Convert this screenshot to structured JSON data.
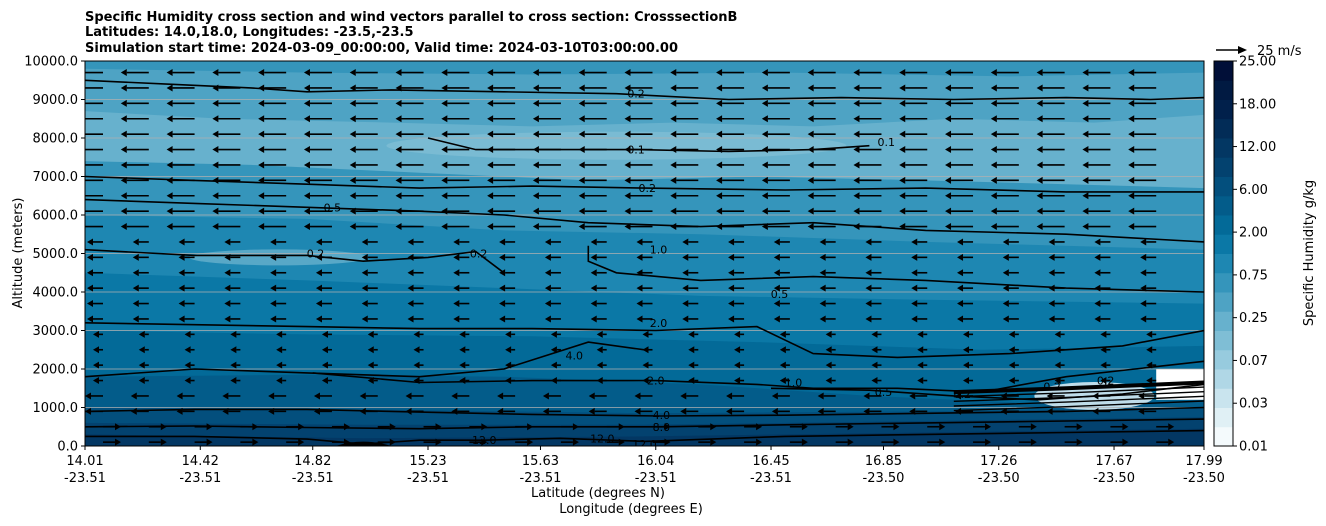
{
  "chart_data": {
    "type": "heatmap",
    "title_lines": [
      "Specific Humidity cross section and wind vectors parallel to cross section: CrosssectionB",
      "Latitudes: 14.0,18.0, Longitudes: -23.5,-23.5",
      "Simulation start time: 2024-03-09_00:00:00, Valid time: 2024-03-10T03:00:00.00"
    ],
    "ylabel": "Altitude (meters)",
    "xlabel_lat": "Latitude (degrees N)",
    "xlabel_lon": "Longitude (degrees E)",
    "ylim": [
      0,
      10000
    ],
    "y_ticks": [
      "0.0",
      "1000.0",
      "2000.0",
      "3000.0",
      "4000.0",
      "5000.0",
      "6000.0",
      "7000.0",
      "8000.0",
      "9000.0",
      "10000.0"
    ],
    "y_tick_values": [
      0,
      1000,
      2000,
      3000,
      4000,
      5000,
      6000,
      7000,
      8000,
      9000,
      10000
    ],
    "x_ticks": [
      {
        "lat": "14.01",
        "lon": "-23.51"
      },
      {
        "lat": "14.42",
        "lon": "-23.51"
      },
      {
        "lat": "14.82",
        "lon": "-23.51"
      },
      {
        "lat": "15.23",
        "lon": "-23.51"
      },
      {
        "lat": "15.63",
        "lon": "-23.51"
      },
      {
        "lat": "16.04",
        "lon": "-23.51"
      },
      {
        "lat": "16.45",
        "lon": "-23.51"
      },
      {
        "lat": "16.85",
        "lon": "-23.50"
      },
      {
        "lat": "17.26",
        "lon": "-23.50"
      },
      {
        "lat": "17.67",
        "lon": "-23.50"
      },
      {
        "lat": "17.99",
        "lon": "-23.50"
      }
    ],
    "colorbar": {
      "label": "Specific Humidity g/kg",
      "tick_labels": [
        "0.01",
        "0.03",
        "0.07",
        "0.25",
        "0.75",
        "2.00",
        "6.00",
        "12.00",
        "18.00",
        "25.00"
      ],
      "colors": [
        "#f4fafc",
        "#e0f0f5",
        "#c9e4ee",
        "#b0d7e6",
        "#97cbde",
        "#7fbed5",
        "#67b1cd",
        "#4ea3c4",
        "#3595bb",
        "#1e87b2",
        "#0b78a6",
        "#036a98",
        "#035c8a",
        "#034f7d",
        "#03426f",
        "#033763",
        "#022c57",
        "#01204b",
        "#011a42",
        "#010f38"
      ]
    },
    "wind_reference": {
      "label": "25 m/s",
      "speed": 25
    },
    "contour_labels": [
      {
        "text": "0.2",
        "x": 15.97,
        "y": 9150
      },
      {
        "text": "0.1",
        "x": 15.97,
        "y": 7700
      },
      {
        "text": "0.1",
        "x": 16.86,
        "y": 7900
      },
      {
        "text": "0.2",
        "x": 16.01,
        "y": 6700
      },
      {
        "text": "0.5",
        "x": 14.89,
        "y": 6200
      },
      {
        "text": "0.2",
        "x": 14.83,
        "y": 5000
      },
      {
        "text": "0.2",
        "x": 15.41,
        "y": 5000
      },
      {
        "text": "1.0",
        "x": 16.05,
        "y": 5100
      },
      {
        "text": "0.5",
        "x": 16.48,
        "y": 3950
      },
      {
        "text": "2.0",
        "x": 16.05,
        "y": 3200
      },
      {
        "text": "4.0",
        "x": 15.75,
        "y": 2350
      },
      {
        "text": "2.0",
        "x": 16.04,
        "y": 1700
      },
      {
        "text": "1.0",
        "x": 16.53,
        "y": 1650
      },
      {
        "text": "0.5",
        "x": 16.85,
        "y": 1400
      },
      {
        "text": "0.2",
        "x": 17.13,
        "y": 1350
      },
      {
        "text": "0.2",
        "x": 17.45,
        "y": 1550
      },
      {
        "text": "0.2",
        "x": 17.64,
        "y": 1700
      },
      {
        "text": "4.0",
        "x": 16.06,
        "y": 800
      },
      {
        "text": "8.0",
        "x": 16.06,
        "y": 500
      },
      {
        "text": "12.0",
        "x": 15.43,
        "y": 150
      },
      {
        "text": "12.0",
        "x": 15.85,
        "y": 200
      },
      {
        "text": "12.0",
        "x": 16.0,
        "y": 50
      }
    ],
    "contour_lines": [
      {
        "level": "0.2",
        "points": [
          [
            14.01,
            9500
          ],
          [
            14.3,
            9400
          ],
          [
            14.6,
            9300
          ],
          [
            14.8,
            9200
          ],
          [
            15.1,
            9250
          ],
          [
            15.5,
            9200
          ],
          [
            15.9,
            9150
          ],
          [
            16.3,
            9000
          ],
          [
            16.7,
            9050
          ],
          [
            17.1,
            9000
          ],
          [
            17.5,
            9050
          ],
          [
            17.8,
            9000
          ],
          [
            17.99,
            9050
          ]
        ]
      },
      {
        "level": "0.1",
        "points": [
          [
            15.23,
            8000
          ],
          [
            15.4,
            7700
          ],
          [
            15.7,
            7700
          ],
          [
            15.97,
            7700
          ],
          [
            16.3,
            7650
          ],
          [
            16.6,
            7700
          ],
          [
            16.8,
            7800
          ]
        ]
      },
      {
        "level": "0.2",
        "points": [
          [
            14.01,
            7000
          ],
          [
            14.4,
            6900
          ],
          [
            14.8,
            6800
          ],
          [
            15.2,
            6700
          ],
          [
            15.6,
            6750
          ],
          [
            16.0,
            6700
          ],
          [
            16.5,
            6650
          ],
          [
            17.0,
            6700
          ],
          [
            17.5,
            6600
          ],
          [
            17.99,
            6600
          ]
        ]
      },
      {
        "level": "0.5",
        "points": [
          [
            14.01,
            6400
          ],
          [
            14.4,
            6300
          ],
          [
            14.8,
            6200
          ],
          [
            15.2,
            6100
          ],
          [
            15.5,
            6000
          ],
          [
            15.8,
            5800
          ],
          [
            16.2,
            5700
          ],
          [
            16.6,
            5800
          ],
          [
            17.0,
            5600
          ],
          [
            17.5,
            5500
          ],
          [
            17.99,
            5300
          ]
        ]
      },
      {
        "level": "0.2",
        "points": [
          [
            14.01,
            5100
          ],
          [
            14.4,
            4950
          ],
          [
            14.8,
            4950
          ],
          [
            15.0,
            4800
          ],
          [
            15.23,
            4900
          ],
          [
            15.4,
            5050
          ],
          [
            15.5,
            4500
          ]
        ]
      },
      {
        "level": "1.0",
        "points": [
          [
            15.8,
            5200
          ],
          [
            15.8,
            4800
          ],
          [
            15.9,
            4500
          ],
          [
            16.2,
            4300
          ],
          [
            16.6,
            4400
          ],
          [
            17.0,
            4300
          ],
          [
            17.5,
            4100
          ],
          [
            17.99,
            4000
          ]
        ]
      },
      {
        "level": "2.0",
        "points": [
          [
            14.01,
            3200
          ],
          [
            14.4,
            3150
          ],
          [
            14.8,
            3100
          ],
          [
            15.2,
            3050
          ],
          [
            15.6,
            3050
          ],
          [
            16.04,
            3000
          ],
          [
            16.4,
            3100
          ],
          [
            16.6,
            2400
          ],
          [
            16.9,
            2300
          ],
          [
            17.3,
            2400
          ],
          [
            17.7,
            2600
          ],
          [
            17.99,
            3000
          ]
        ]
      },
      {
        "level": "4.0",
        "points": [
          [
            14.01,
            1800
          ],
          [
            14.4,
            2000
          ],
          [
            14.8,
            1900
          ],
          [
            15.2,
            1800
          ],
          [
            15.5,
            2000
          ],
          [
            15.8,
            2700
          ],
          [
            16.0,
            2500
          ]
        ]
      },
      {
        "level": "2.0",
        "points": [
          [
            14.82,
            1900
          ],
          [
            15.2,
            1650
          ],
          [
            15.6,
            1700
          ],
          [
            16.04,
            1700
          ],
          [
            16.4,
            1600
          ],
          [
            16.6,
            1500
          ],
          [
            16.9,
            1500
          ],
          [
            17.2,
            1400
          ],
          [
            17.5,
            1800
          ],
          [
            17.99,
            2200
          ]
        ]
      },
      {
        "level": "1.0",
        "points": [
          [
            16.45,
            1500
          ],
          [
            16.8,
            1450
          ],
          [
            17.1,
            1300
          ],
          [
            17.4,
            1200
          ],
          [
            17.7,
            1350
          ],
          [
            17.99,
            1600
          ]
        ]
      },
      {
        "level": "4.0",
        "points": [
          [
            14.01,
            900
          ],
          [
            14.4,
            950
          ],
          [
            14.8,
            950
          ],
          [
            15.2,
            880
          ],
          [
            15.6,
            820
          ],
          [
            16.06,
            780
          ],
          [
            16.5,
            800
          ],
          [
            17.0,
            850
          ],
          [
            17.5,
            900
          ],
          [
            17.99,
            1000
          ]
        ]
      },
      {
        "level": "8.0",
        "points": [
          [
            14.01,
            500
          ],
          [
            14.4,
            520
          ],
          [
            14.8,
            480
          ],
          [
            15.2,
            450
          ],
          [
            15.6,
            500
          ],
          [
            16.06,
            500
          ],
          [
            16.5,
            550
          ],
          [
            17.0,
            600
          ],
          [
            17.5,
            650
          ],
          [
            17.99,
            700
          ]
        ]
      },
      {
        "level": "12.0",
        "points": [
          [
            14.01,
            250
          ],
          [
            14.4,
            250
          ],
          [
            14.8,
            180
          ],
          [
            15.0,
            50
          ],
          [
            15.2,
            150
          ],
          [
            15.43,
            150
          ],
          [
            15.7,
            200
          ],
          [
            16.0,
            120
          ],
          [
            16.5,
            250
          ],
          [
            17.0,
            300
          ],
          [
            17.5,
            350
          ],
          [
            17.99,
            400
          ]
        ]
      }
    ]
  }
}
